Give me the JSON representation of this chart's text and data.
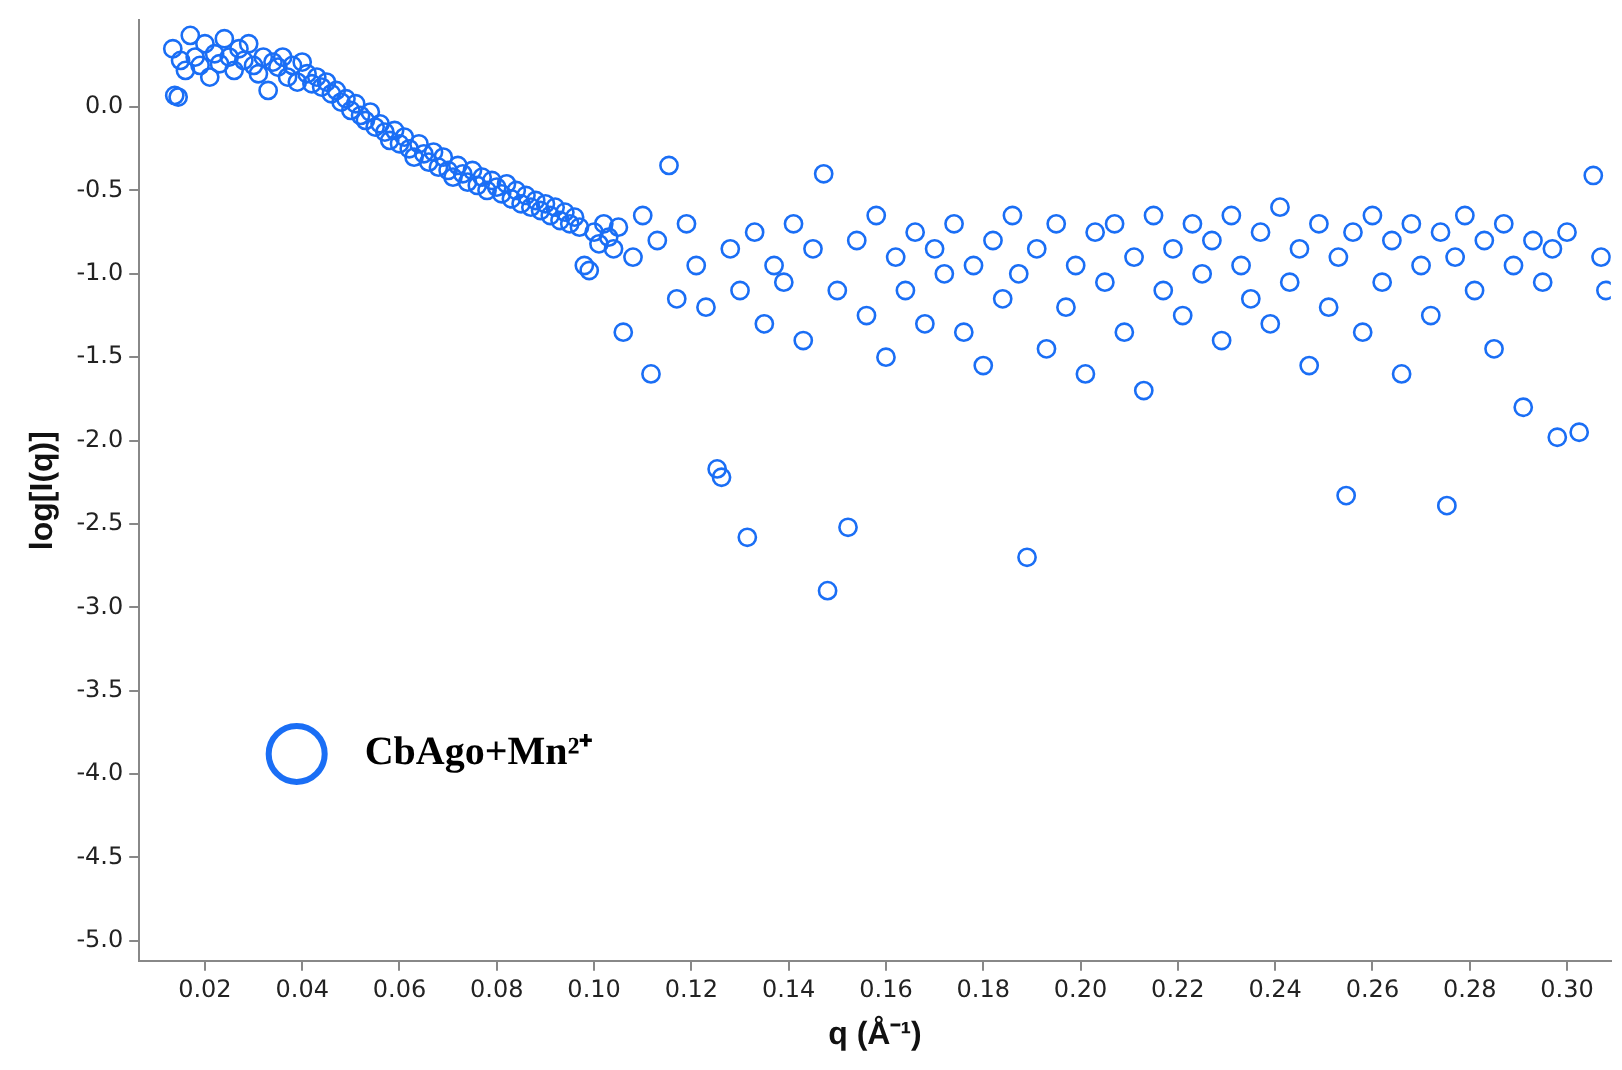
{
  "chart_data": {
    "type": "scatter",
    "xlabel": "q (Å⁻¹)",
    "ylabel": "log[I(q)]",
    "xlim": [
      0.0065,
      0.309
    ],
    "ylim": [
      -5.12,
      0.52
    ],
    "xticks": [
      0.02,
      0.04,
      0.06,
      0.08,
      {
        "value": 0.1,
        "label": "0.10"
      },
      0.12,
      0.14,
      0.16,
      0.18,
      {
        "value": 0.2,
        "label": "0.20"
      },
      0.22,
      0.24,
      0.26,
      0.28,
      {
        "value": 0.3,
        "label": "0.30"
      }
    ],
    "yticks": [
      {
        "value": 0,
        "label": "0.0"
      },
      -0.5,
      {
        "value": -1,
        "label": "-1.0"
      },
      -1.5,
      {
        "value": -2,
        "label": "-2.0"
      },
      -2.5,
      {
        "value": -3,
        "label": "-3.0"
      },
      -3.5,
      {
        "value": -4,
        "label": "-4.0"
      },
      -4.5,
      {
        "value": -5,
        "label": "-5.0"
      }
    ],
    "grid": false,
    "legend": "bottom left",
    "marker": "circle",
    "series": [
      {
        "name": "CbAgo+Mn²⁺",
        "color": "#1a6ef5",
        "x": [
          0.0134,
          0.0138,
          0.0145,
          0.015,
          0.016,
          0.017,
          0.018,
          0.019,
          0.02,
          0.021,
          0.022,
          0.023,
          0.024,
          0.025,
          0.026,
          0.027,
          0.028,
          0.029,
          0.03,
          0.031,
          0.032,
          0.033,
          0.034,
          0.035,
          0.036,
          0.037,
          0.038,
          0.039,
          0.04,
          0.041,
          0.042,
          0.043,
          0.044,
          0.045,
          0.046,
          0.047,
          0.048,
          0.049,
          0.05,
          0.051,
          0.052,
          0.053,
          0.054,
          0.055,
          0.056,
          0.057,
          0.058,
          0.059,
          0.06,
          0.061,
          0.062,
          0.063,
          0.064,
          0.065,
          0.066,
          0.067,
          0.068,
          0.069,
          0.07,
          0.071,
          0.072,
          0.073,
          0.074,
          0.075,
          0.076,
          0.077,
          0.078,
          0.079,
          0.08,
          0.081,
          0.082,
          0.083,
          0.084,
          0.085,
          0.086,
          0.087,
          0.088,
          0.089,
          0.09,
          0.091,
          0.092,
          0.093,
          0.094,
          0.095,
          0.096,
          0.097,
          0.098,
          0.099,
          0.1,
          0.101,
          0.102,
          0.103,
          0.104,
          0.105,
          0.106,
          0.108,
          0.11,
          0.1117,
          0.113,
          0.1154,
          0.117,
          0.119,
          0.121,
          0.123,
          0.1253,
          0.1262,
          0.128,
          0.13,
          0.1315,
          0.133,
          0.135,
          0.137,
          0.139,
          0.141,
          0.143,
          0.145,
          0.1472,
          0.148,
          0.15,
          0.1522,
          0.154,
          0.156,
          0.158,
          0.16,
          0.162,
          0.164,
          0.166,
          0.168,
          0.17,
          0.172,
          0.174,
          0.176,
          0.178,
          0.18,
          0.182,
          0.184,
          0.186,
          0.1873,
          0.189,
          0.191,
          0.193,
          0.195,
          0.197,
          0.199,
          0.201,
          0.203,
          0.205,
          0.207,
          0.209,
          0.211,
          0.213,
          0.215,
          0.217,
          0.219,
          0.221,
          0.223,
          0.225,
          0.227,
          0.229,
          0.231,
          0.233,
          0.235,
          0.237,
          0.239,
          0.241,
          0.243,
          0.245,
          0.247,
          0.249,
          0.251,
          0.253,
          0.2546,
          0.256,
          0.258,
          0.26,
          0.262,
          0.264,
          0.266,
          0.268,
          0.27,
          0.272,
          0.274,
          0.2753,
          0.277,
          0.279,
          0.281,
          0.283,
          0.285,
          0.287,
          0.289,
          0.291,
          0.293,
          0.295,
          0.297,
          0.298,
          0.3,
          0.3025,
          0.3054,
          0.307,
          0.308
        ],
        "values": [
          0.35,
          0.07,
          0.06,
          0.28,
          0.22,
          0.43,
          0.3,
          0.25,
          0.38,
          0.18,
          0.32,
          0.26,
          0.41,
          0.3,
          0.22,
          0.35,
          0.28,
          0.38,
          0.25,
          0.2,
          0.3,
          0.1,
          0.27,
          0.24,
          0.3,
          0.18,
          0.25,
          0.15,
          0.27,
          0.2,
          0.14,
          0.18,
          0.12,
          0.15,
          0.08,
          0.1,
          0.03,
          0.05,
          -0.02,
          0.02,
          -0.05,
          -0.08,
          -0.03,
          -0.12,
          -0.1,
          -0.15,
          -0.2,
          -0.14,
          -0.22,
          -0.18,
          -0.25,
          -0.3,
          -0.22,
          -0.28,
          -0.33,
          -0.27,
          -0.36,
          -0.3,
          -0.38,
          -0.42,
          -0.35,
          -0.4,
          -0.45,
          -0.38,
          -0.47,
          -0.42,
          -0.5,
          -0.44,
          -0.48,
          -0.52,
          -0.46,
          -0.55,
          -0.5,
          -0.58,
          -0.53,
          -0.6,
          -0.56,
          -0.62,
          -0.58,
          -0.65,
          -0.6,
          -0.68,
          -0.63,
          -0.7,
          -0.66,
          -0.72,
          -0.95,
          -0.98,
          -0.75,
          -0.82,
          -0.7,
          -0.78,
          -0.85,
          -0.72,
          -1.35,
          -0.9,
          -0.65,
          -1.6,
          -0.8,
          -0.35,
          -1.15,
          -0.7,
          -0.95,
          -1.2,
          -2.17,
          -2.22,
          -0.85,
          -1.1,
          -2.58,
          -0.75,
          -1.3,
          -0.95,
          -1.05,
          -0.7,
          -1.4,
          -0.85,
          -0.4,
          -2.9,
          -1.1,
          -2.52,
          -0.8,
          -1.25,
          -0.65,
          -1.5,
          -0.9,
          -1.1,
          -0.75,
          -1.3,
          -0.85,
          -1.0,
          -0.7,
          -1.35,
          -0.95,
          -1.55,
          -0.8,
          -1.15,
          -0.65,
          -1.0,
          -2.7,
          -0.85,
          -1.45,
          -0.7,
          -1.2,
          -0.95,
          -1.6,
          -0.75,
          -1.05,
          -0.7,
          -1.35,
          -0.9,
          -1.7,
          -0.65,
          -1.1,
          -0.85,
          -1.25,
          -0.7,
          -1.0,
          -0.8,
          -1.4,
          -0.65,
          -0.95,
          -1.15,
          -0.75,
          -1.3,
          -0.6,
          -1.05,
          -0.85,
          -1.55,
          -0.7,
          -1.2,
          -0.9,
          -2.33,
          -0.75,
          -1.35,
          -0.65,
          -1.05,
          -0.8,
          -1.6,
          -0.7,
          -0.95,
          -1.25,
          -0.75,
          -2.39,
          -0.9,
          -0.65,
          -1.1,
          -0.8,
          -1.45,
          -0.7,
          -0.95,
          -1.8,
          -0.8,
          -1.05,
          -0.85,
          -1.98,
          -0.75,
          -1.95,
          -0.41,
          -0.9,
          -1.1
        ]
      }
    ]
  }
}
